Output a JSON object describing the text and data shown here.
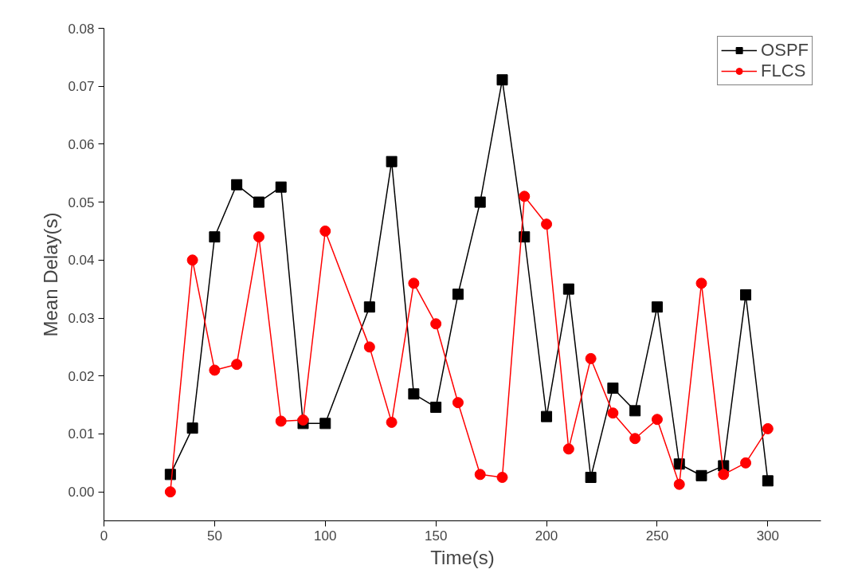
{
  "chart_data": {
    "type": "line",
    "xlabel": "Time(s)",
    "ylabel": "Mean Delay(s)",
    "x": [
      30,
      40,
      50,
      60,
      70,
      80,
      90,
      100,
      120,
      130,
      140,
      150,
      160,
      170,
      180,
      190,
      200,
      210,
      220,
      230,
      240,
      250,
      260,
      270,
      280,
      290,
      300
    ],
    "series": [
      {
        "name": "OSPF",
        "color": "#000000",
        "marker": "square",
        "values": [
          0.003,
          0.011,
          0.044,
          0.053,
          0.05,
          0.0526,
          0.0118,
          0.0118,
          0.0319,
          0.057,
          0.0169,
          0.0146,
          0.0341,
          0.05,
          0.0711,
          0.044,
          0.013,
          0.035,
          0.0025,
          0.0179,
          0.014,
          0.0319,
          0.0048,
          0.0028,
          0.0045,
          0.034,
          0.0019
        ]
      },
      {
        "name": "FLCS",
        "color": "#ff0000",
        "marker": "circle",
        "values": [
          0,
          0.04,
          0.021,
          0.022,
          0.044,
          0.0122,
          0.0124,
          0.045,
          0.025,
          0.012,
          0.036,
          0.029,
          0.0154,
          0.003,
          0.0025,
          0.051,
          0.0462,
          0.0074,
          0.023,
          0.0136,
          0.0092,
          0.0125,
          0.0013,
          0.036,
          0.003,
          0.005,
          0.0109
        ]
      }
    ],
    "xlim": [
      0,
      324
    ],
    "xticks": [
      0,
      50,
      100,
      150,
      200,
      250,
      300
    ],
    "ylim": [
      -0.005,
      0.08
    ],
    "yticks": [
      {
        "value": 0,
        "label": "0.00"
      },
      {
        "value": 0.01,
        "label": "0.01"
      },
      {
        "value": 0.02,
        "label": "0.02"
      },
      {
        "value": 0.03,
        "label": "0.03"
      },
      {
        "value": 0.04,
        "label": "0.04"
      },
      {
        "value": 0.05,
        "label": "0.05"
      },
      {
        "value": 0.06,
        "label": "0.06"
      },
      {
        "value": 0.07,
        "label": "0.07"
      },
      {
        "value": 0.08,
        "label": "0.08"
      }
    ],
    "legend": "top right",
    "grid": false,
    "line_style": "solid"
  }
}
